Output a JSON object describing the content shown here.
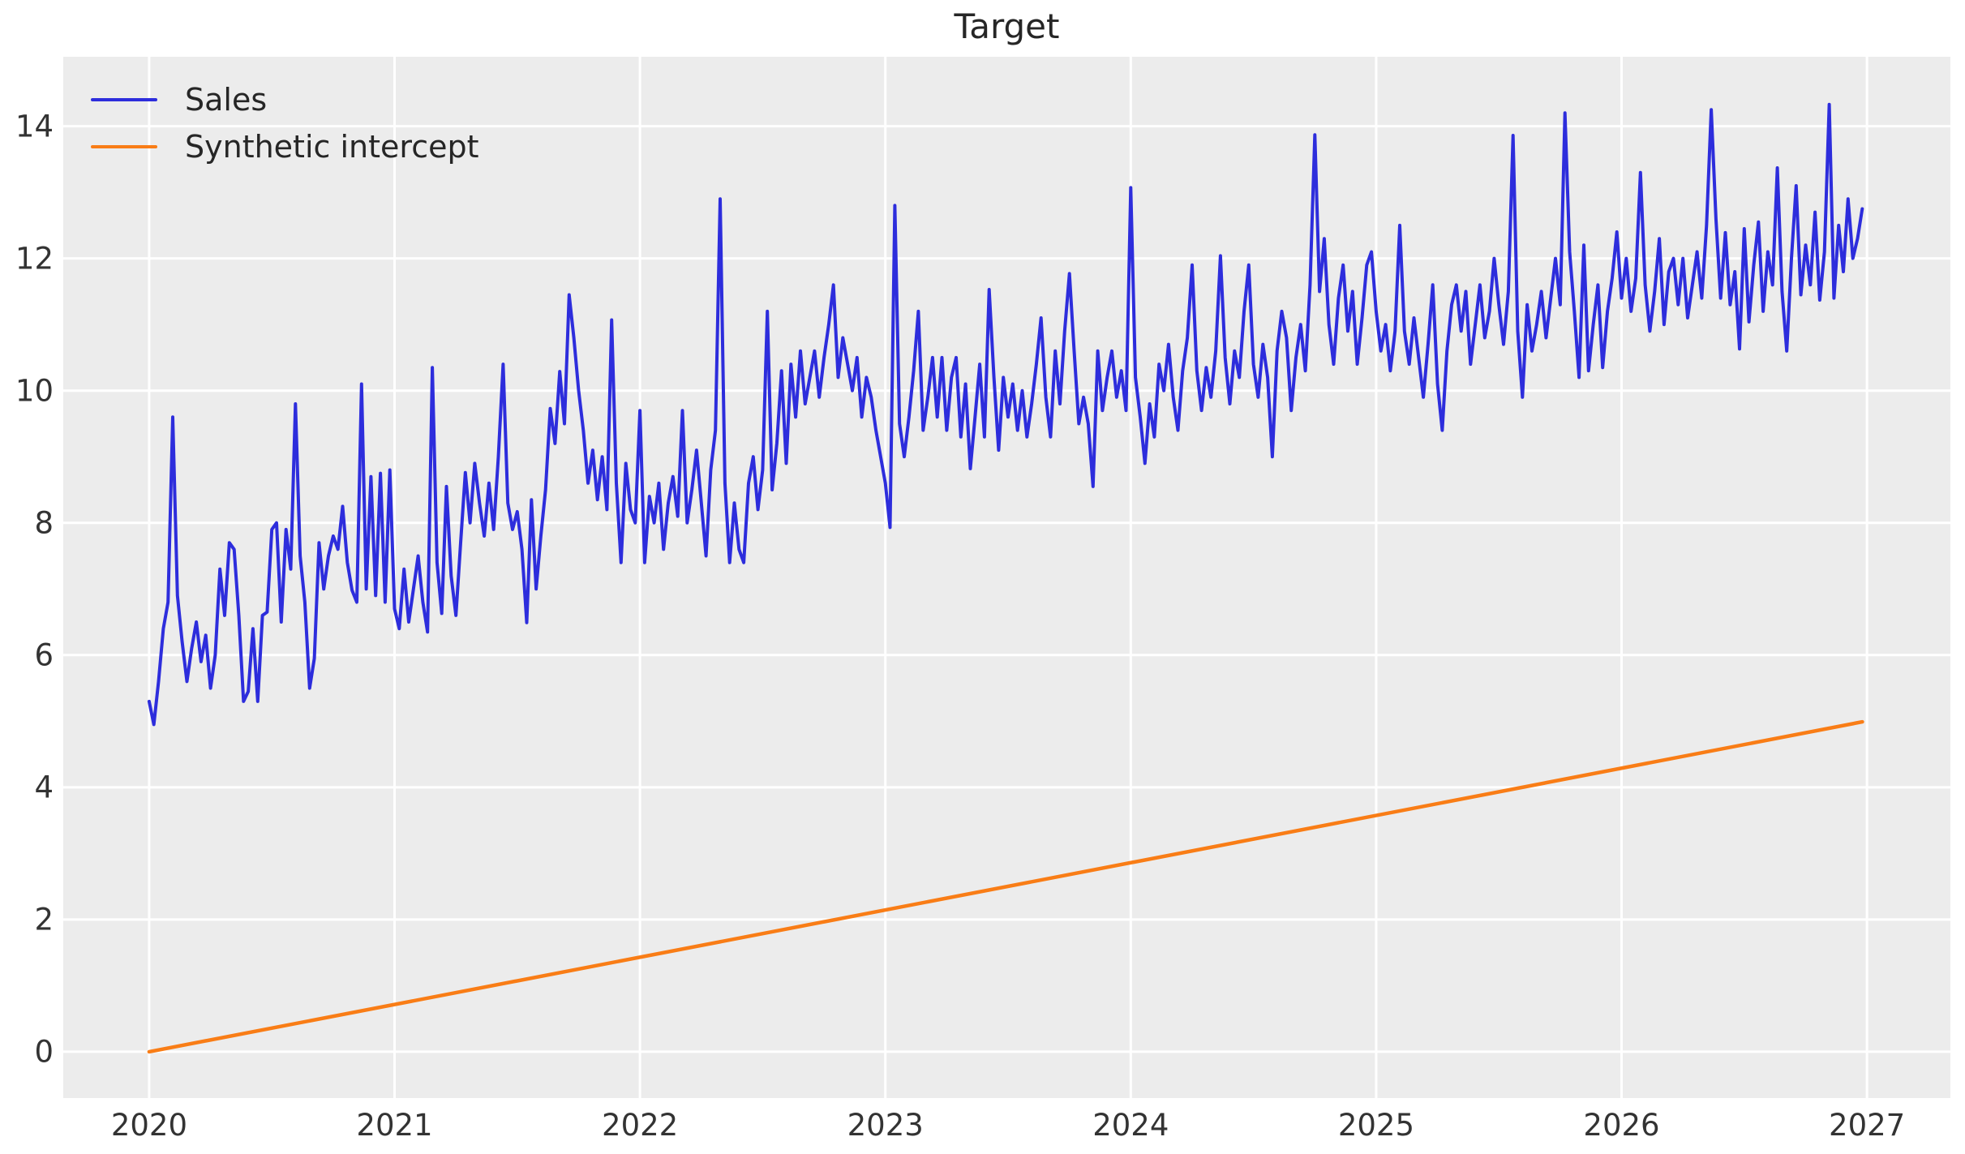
{
  "chart_data": {
    "type": "line",
    "title": "Target",
    "xlabel": "",
    "ylabel": "",
    "grid": true,
    "legend_position": "upper left",
    "plot_background": "#ececec",
    "grid_color": "#ffffff",
    "text_color": "#262626",
    "tick_color": "#333333",
    "xlim": [
      2019.65,
      2027.34
    ],
    "ylim": [
      -0.7,
      15.05
    ],
    "x_ticks": [
      2020,
      2021,
      2022,
      2023,
      2024,
      2025,
      2026,
      2027
    ],
    "y_ticks": [
      0,
      2,
      4,
      6,
      8,
      10,
      12,
      14
    ],
    "series": [
      {
        "name": "Sales",
        "color": "#2d2ddc",
        "x_start": 2020.0,
        "x_step": 0.0192308,
        "values": [
          5.3,
          4.95,
          5.6,
          6.4,
          6.8,
          9.6,
          6.9,
          6.2,
          5.6,
          6.1,
          6.5,
          5.9,
          6.3,
          5.5,
          6.0,
          7.3,
          6.6,
          7.7,
          7.6,
          6.6,
          5.3,
          5.45,
          6.4,
          5.3,
          6.6,
          6.65,
          7.9,
          8.0,
          6.5,
          7.9,
          7.3,
          9.8,
          7.5,
          6.8,
          5.5,
          5.95,
          7.7,
          7.0,
          7.5,
          7.8,
          7.6,
          8.25,
          7.4,
          6.98,
          6.8,
          10.1,
          7.0,
          8.7,
          6.9,
          8.75,
          6.8,
          8.8,
          6.7,
          6.4,
          7.3,
          6.5,
          7.0,
          7.5,
          6.8,
          6.35,
          10.35,
          7.4,
          6.63,
          8.55,
          7.2,
          6.6,
          7.7,
          8.76,
          8.0,
          8.9,
          8.3,
          7.8,
          8.6,
          7.9,
          9.0,
          10.4,
          8.3,
          7.9,
          8.17,
          7.6,
          6.49,
          8.35,
          7.0,
          7.8,
          8.5,
          9.73,
          9.2,
          10.29,
          9.5,
          11.45,
          10.8,
          10.0,
          9.4,
          8.6,
          9.1,
          8.35,
          9.0,
          8.2,
          11.07,
          8.6,
          7.4,
          8.9,
          8.2,
          8.0,
          9.7,
          7.4,
          8.4,
          8.0,
          8.6,
          7.6,
          8.3,
          8.7,
          8.1,
          9.7,
          8.0,
          8.5,
          9.1,
          8.3,
          7.5,
          8.8,
          9.4,
          12.9,
          8.6,
          7.4,
          8.3,
          7.6,
          7.4,
          8.6,
          9.0,
          8.2,
          8.8,
          11.2,
          8.5,
          9.2,
          10.3,
          8.9,
          10.4,
          9.6,
          10.6,
          9.8,
          10.2,
          10.6,
          9.9,
          10.5,
          11.0,
          11.6,
          10.2,
          10.8,
          10.4,
          10.0,
          10.5,
          9.6,
          10.2,
          9.9,
          9.4,
          9.0,
          8.6,
          7.93,
          12.8,
          9.5,
          9.0,
          9.6,
          10.3,
          11.2,
          9.4,
          9.9,
          10.5,
          9.6,
          10.5,
          9.4,
          10.2,
          10.5,
          9.3,
          10.1,
          8.82,
          9.6,
          10.4,
          9.3,
          11.53,
          10.2,
          9.1,
          10.2,
          9.6,
          10.1,
          9.4,
          10.0,
          9.3,
          9.8,
          10.4,
          11.1,
          9.9,
          9.3,
          10.6,
          9.8,
          10.9,
          11.77,
          10.6,
          9.5,
          9.9,
          9.5,
          8.55,
          10.6,
          9.7,
          10.2,
          10.6,
          9.9,
          10.3,
          9.7,
          13.07,
          10.2,
          9.6,
          8.9,
          9.8,
          9.3,
          10.4,
          10.0,
          10.7,
          9.9,
          9.4,
          10.3,
          10.8,
          11.9,
          10.3,
          9.7,
          10.35,
          9.9,
          10.6,
          12.04,
          10.5,
          9.8,
          10.6,
          10.2,
          11.2,
          11.9,
          10.4,
          9.9,
          10.7,
          10.2,
          9.0,
          10.6,
          11.2,
          10.8,
          9.7,
          10.5,
          11.0,
          10.3,
          11.6,
          13.87,
          11.5,
          12.3,
          11.0,
          10.4,
          11.4,
          11.9,
          10.9,
          11.5,
          10.4,
          11.1,
          11.9,
          12.1,
          11.2,
          10.6,
          11.0,
          10.3,
          10.9,
          12.5,
          10.9,
          10.4,
          11.1,
          10.5,
          9.9,
          10.7,
          11.6,
          10.1,
          9.4,
          10.6,
          11.3,
          11.6,
          10.9,
          11.5,
          10.4,
          11.0,
          11.6,
          10.8,
          11.2,
          12.0,
          11.3,
          10.7,
          11.5,
          13.86,
          10.9,
          9.9,
          11.3,
          10.6,
          11.0,
          11.5,
          10.8,
          11.4,
          12.0,
          11.3,
          14.2,
          12.1,
          11.2,
          10.2,
          12.2,
          10.3,
          11.0,
          11.6,
          10.35,
          11.2,
          11.7,
          12.4,
          11.4,
          12.0,
          11.2,
          11.7,
          13.3,
          11.6,
          10.9,
          11.5,
          12.3,
          11.0,
          11.8,
          12.0,
          11.3,
          12.0,
          11.1,
          11.6,
          12.1,
          11.4,
          12.5,
          14.25,
          12.6,
          11.4,
          12.39,
          11.3,
          11.8,
          10.63,
          12.45,
          11.04,
          11.9,
          12.55,
          11.2,
          12.1,
          11.6,
          13.37,
          11.5,
          10.6,
          12.0,
          13.1,
          11.45,
          12.2,
          11.6,
          12.7,
          11.37,
          12.1,
          14.33,
          11.4,
          12.5,
          11.8,
          12.9,
          12.0,
          12.3,
          12.75
        ]
      },
      {
        "name": "Synthetic intercept",
        "color": "#f97d16",
        "x": [
          2020.0,
          2026.981
        ],
        "values": [
          0.0,
          4.99
        ]
      }
    ]
  }
}
